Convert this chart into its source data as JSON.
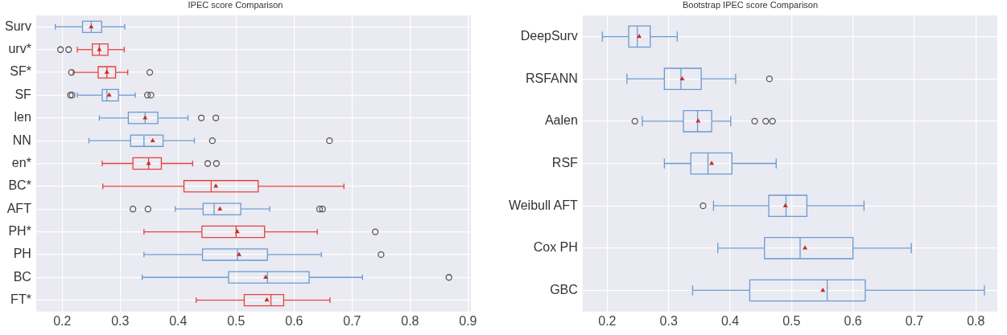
{
  "chart_data": [
    {
      "type": "box",
      "title": "IPEC score Comparison",
      "orientation": "horizontal",
      "grid": true,
      "categories": [
        "Surv",
        "urv*",
        "SF*",
        "SF",
        "len",
        "NN",
        "en*",
        "BC*",
        "AFT",
        "PH*",
        "PH",
        "BC",
        "FT*"
      ],
      "colors": [
        "#6a9bd1",
        "#e8413c",
        "#e8413c",
        "#6a9bd1",
        "#6a9bd1",
        "#6a9bd1",
        "#e8413c",
        "#e8413c",
        "#6a9bd1",
        "#e8413c",
        "#6a9bd1",
        "#6a9bd1",
        "#e8413c"
      ],
      "boxes": [
        {
          "low": 0.188,
          "q1": 0.235,
          "median": 0.25,
          "q3": 0.268,
          "high": 0.308,
          "mean": 0.25
        },
        {
          "low": 0.226,
          "q1": 0.252,
          "median": 0.264,
          "q3": 0.279,
          "high": 0.307,
          "mean": 0.264,
          "outliers": [
            0.197,
            0.211
          ]
        },
        {
          "low": 0.219,
          "q1": 0.262,
          "median": 0.277,
          "q3": 0.292,
          "high": 0.313,
          "mean": 0.277,
          "outliers": [
            0.216,
            0.351
          ]
        },
        {
          "low": 0.226,
          "q1": 0.269,
          "median": 0.277,
          "q3": 0.297,
          "high": 0.326,
          "mean": 0.281,
          "outliers": [
            0.214,
            0.217,
            0.347,
            0.353
          ]
        },
        {
          "low": 0.264,
          "q1": 0.314,
          "median": 0.343,
          "q3": 0.365,
          "high": 0.417,
          "mean": 0.343,
          "outliers": [
            0.44,
            0.465
          ]
        },
        {
          "low": 0.246,
          "q1": 0.318,
          "median": 0.341,
          "q3": 0.374,
          "high": 0.428,
          "mean": 0.356,
          "outliers": [
            0.459,
            0.661
          ]
        },
        {
          "low": 0.269,
          "q1": 0.322,
          "median": 0.349,
          "q3": 0.371,
          "high": 0.425,
          "mean": 0.349,
          "outliers": [
            0.451,
            0.466
          ]
        },
        {
          "low": 0.27,
          "q1": 0.41,
          "median": 0.457,
          "q3": 0.538,
          "high": 0.686,
          "mean": 0.465
        },
        {
          "low": 0.395,
          "q1": 0.443,
          "median": 0.462,
          "q3": 0.508,
          "high": 0.558,
          "mean": 0.472,
          "outliers": [
            0.322,
            0.348,
            0.644,
            0.649
          ]
        },
        {
          "low": 0.341,
          "q1": 0.441,
          "median": 0.5,
          "q3": 0.549,
          "high": 0.64,
          "mean": 0.502,
          "outliers": [
            0.74
          ]
        },
        {
          "low": 0.341,
          "q1": 0.442,
          "median": 0.502,
          "q3": 0.554,
          "high": 0.647,
          "mean": 0.505,
          "outliers": [
            0.75
          ]
        },
        {
          "low": 0.338,
          "q1": 0.487,
          "median": 0.554,
          "q3": 0.626,
          "high": 0.718,
          "mean": 0.551,
          "outliers": [
            0.867
          ]
        },
        {
          "low": 0.431,
          "q1": 0.514,
          "median": 0.56,
          "q3": 0.582,
          "high": 0.662,
          "mean": 0.553
        }
      ],
      "xlim": [
        0.155,
        0.905
      ],
      "xticks": [
        0.2,
        0.3,
        0.4,
        0.5,
        0.6,
        0.7,
        0.8,
        0.9
      ]
    },
    {
      "type": "box",
      "title": "Bootstrap IPEC score Comparison",
      "orientation": "horizontal",
      "grid": true,
      "categories": [
        "DeepSurv",
        "RSFANN",
        "Aalen",
        "RSF",
        "Weibull AFT",
        "Cox PH",
        "GBC"
      ],
      "colors": [
        "#6a9bd1",
        "#6a9bd1",
        "#6a9bd1",
        "#6a9bd1",
        "#6a9bd1",
        "#6a9bd1",
        "#6a9bd1"
      ],
      "boxes": [
        {
          "low": 0.192,
          "q1": 0.235,
          "median": 0.249,
          "q3": 0.27,
          "high": 0.314,
          "mean": 0.252
        },
        {
          "low": 0.232,
          "q1": 0.293,
          "median": 0.32,
          "q3": 0.353,
          "high": 0.409,
          "mean": 0.322,
          "outliers": [
            0.464
          ]
        },
        {
          "low": 0.257,
          "q1": 0.324,
          "median": 0.347,
          "q3": 0.37,
          "high": 0.401,
          "mean": 0.348,
          "outliers": [
            0.245,
            0.44,
            0.458,
            0.469
          ]
        },
        {
          "low": 0.293,
          "q1": 0.336,
          "median": 0.364,
          "q3": 0.403,
          "high": 0.475,
          "mean": 0.37
        },
        {
          "low": 0.373,
          "q1": 0.463,
          "median": 0.491,
          "q3": 0.525,
          "high": 0.618,
          "mean": 0.49,
          "outliers": [
            0.356
          ]
        },
        {
          "low": 0.38,
          "q1": 0.456,
          "median": 0.514,
          "q3": 0.6,
          "high": 0.695,
          "mean": 0.522
        },
        {
          "low": 0.339,
          "q1": 0.432,
          "median": 0.558,
          "q3": 0.62,
          "high": 0.814,
          "mean": 0.551
        }
      ],
      "xlim": [
        0.16,
        0.835
      ],
      "xticks": [
        0.2,
        0.3,
        0.4,
        0.5,
        0.6,
        0.7,
        0.8
      ]
    }
  ]
}
